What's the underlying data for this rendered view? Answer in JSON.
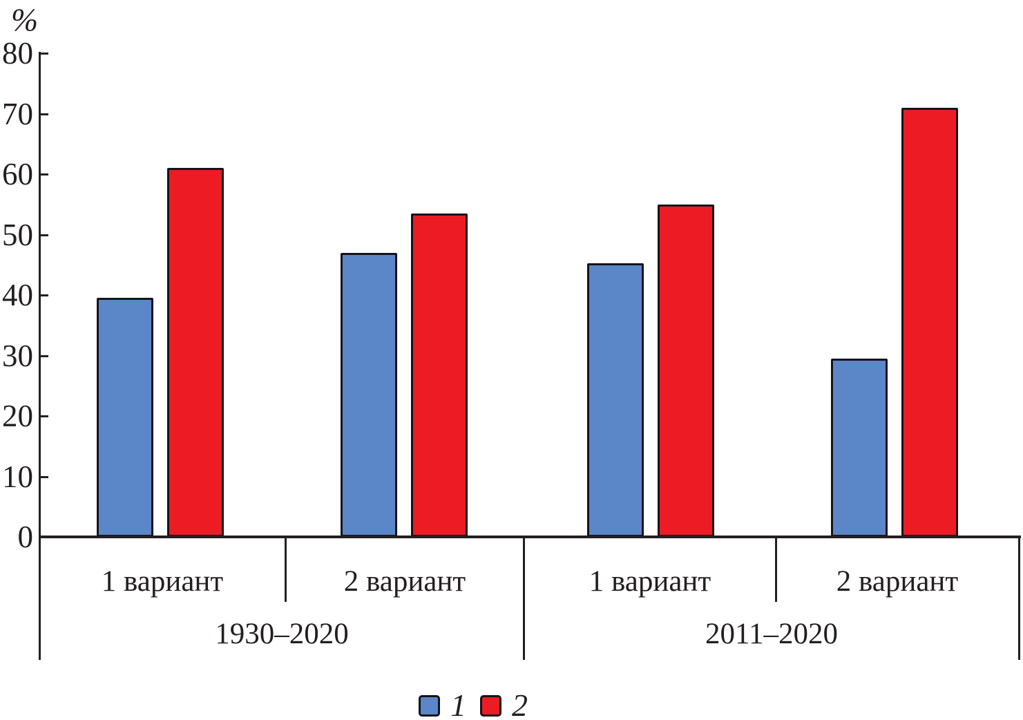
{
  "chart_data": {
    "type": "bar",
    "title": "",
    "ylabel": "%",
    "xlabel": "",
    "ylim": [
      0,
      80
    ],
    "yticks": [
      80,
      70,
      60,
      50,
      40,
      30,
      20,
      10,
      0
    ],
    "grid": false,
    "legend_position": "bottom-center",
    "categories": [
      "1 вариант",
      "2 вариант",
      "1 вариант",
      "2 вариант"
    ],
    "period_groups": [
      {
        "label": "1930–2020",
        "spans_categories": [
          0,
          1
        ]
      },
      {
        "label": "2011–2020",
        "spans_categories": [
          2,
          3
        ]
      }
    ],
    "series": [
      {
        "name": "1",
        "color": "#5b86c7",
        "values": [
          39.5,
          47.0,
          45.3,
          29.5
        ]
      },
      {
        "name": "2",
        "color": "#ed1c24",
        "values": [
          61.0,
          53.5,
          55.0,
          71.0
        ]
      }
    ],
    "legend": [
      {
        "label": "1",
        "color": "#5b86c7"
      },
      {
        "label": "2",
        "color": "#ed1c24"
      }
    ],
    "axis_color": "#231f20"
  }
}
